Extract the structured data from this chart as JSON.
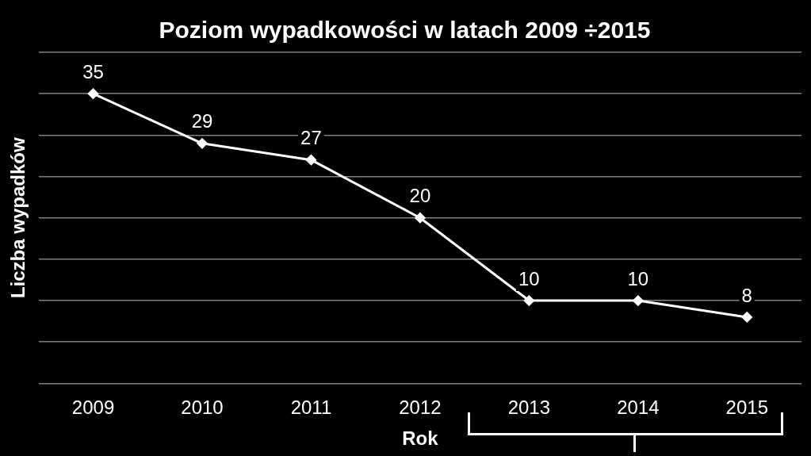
{
  "chart_data": {
    "type": "line",
    "title": "Poziom wypadkowości w latach 2009 ÷2015",
    "xlabel": "Rok",
    "ylabel": "Liczba wypadków",
    "categories": [
      "2009",
      "2010",
      "2011",
      "2012",
      "2013",
      "2014",
      "2015"
    ],
    "series": [
      {
        "color": "#ffffff",
        "values": [
          35,
          29,
          27,
          20,
          10,
          10,
          8
        ]
      }
    ],
    "ylim": [
      0,
      40
    ],
    "yticks": [
      0,
      5,
      10,
      15,
      20,
      25,
      30,
      35,
      40
    ],
    "grid": "y",
    "tick_labels": "x",
    "data_labels": true,
    "marker": "diamond"
  }
}
